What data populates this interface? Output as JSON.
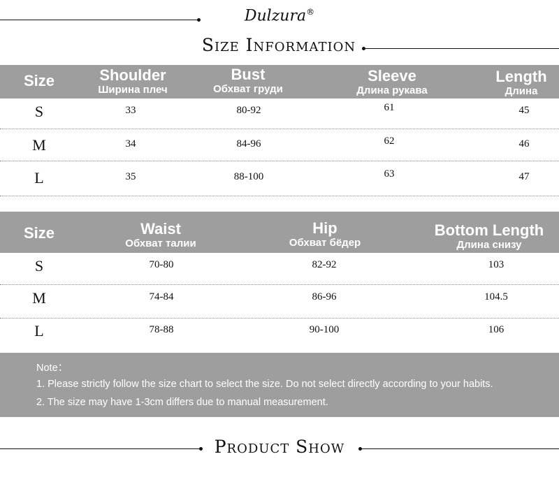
{
  "brand": {
    "logo_text": "Dulzura",
    "registered": "®"
  },
  "section_title": "Size Information",
  "table1": {
    "headers": [
      {
        "en": "Size",
        "ru": ""
      },
      {
        "en": "Shoulder",
        "ru": "Ширина плеч"
      },
      {
        "en": "Bust",
        "ru": "Обхват груди"
      },
      {
        "en": "Sleeve",
        "ru": "Длина рукава"
      },
      {
        "en": "Length",
        "ru": "Длина"
      }
    ],
    "rows": [
      [
        "S",
        "33",
        "80-92",
        "61",
        "45"
      ],
      [
        "M",
        "34",
        "84-96",
        "62",
        "46"
      ],
      [
        "L",
        "35",
        "88-100",
        "63",
        "47"
      ]
    ]
  },
  "table2": {
    "headers": [
      {
        "en": "Size",
        "ru": ""
      },
      {
        "en": "Waist",
        "ru": "Обхват талии"
      },
      {
        "en": "Hip",
        "ru": "Обхват бёдер"
      },
      {
        "en": "Bottom Length",
        "ru": "Длина снизу"
      }
    ],
    "rows": [
      [
        "S",
        "70-80",
        "82-92",
        "103"
      ],
      [
        "M",
        "74-84",
        "86-96",
        "104.5"
      ],
      [
        "L",
        "78-88",
        "90-100",
        "106"
      ]
    ]
  },
  "note": {
    "title": "Note：",
    "items": [
      "1. Please strictly follow the size chart to select the size. Do not select directly according to your habits.",
      "2. The size may have 1-3cm differs due to manual measurement."
    ]
  },
  "footer_title": "Product Show",
  "colors": {
    "header_bg": "#9e9e9e",
    "text": "#111111"
  }
}
